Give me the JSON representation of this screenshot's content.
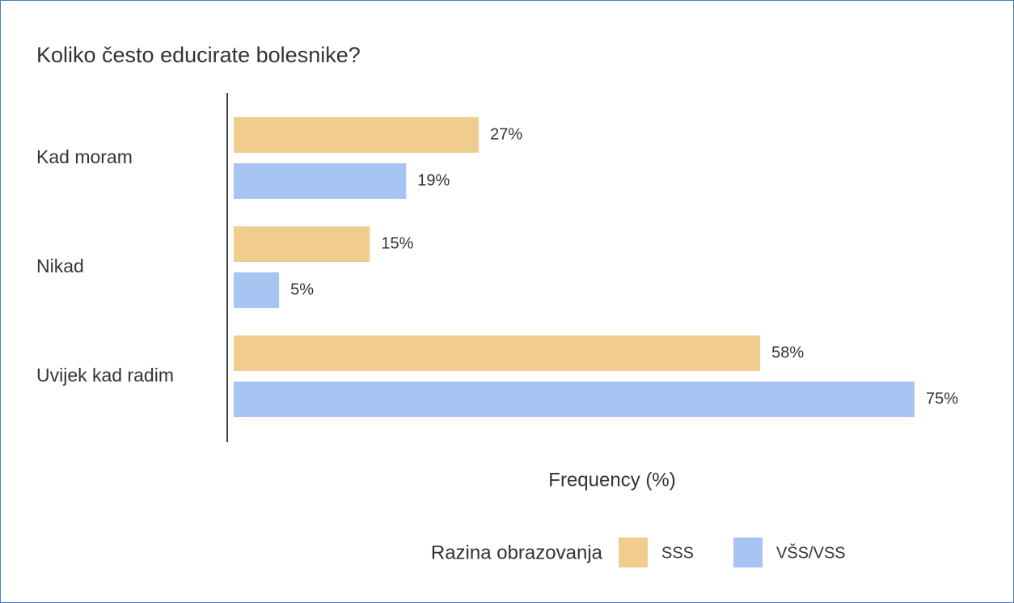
{
  "chart_data": {
    "type": "bar",
    "orientation": "horizontal",
    "title": "Koliko često educirate bolesnike?",
    "categories": [
      "Kad moram",
      "Nikad",
      "Uvijek kad radim"
    ],
    "series": [
      {
        "name": "SSS",
        "color": "#f0cd8f",
        "values": [
          27,
          15,
          58
        ],
        "value_labels": [
          "27%",
          "15%",
          "58%"
        ]
      },
      {
        "name": "VŠS/VSS",
        "color": "#a8c4f2",
        "values": [
          19,
          5,
          75
        ],
        "value_labels": [
          "19%",
          "5%",
          "75%"
        ]
      }
    ],
    "xlabel": "Frequency (%)",
    "xlim": [
      0,
      75
    ],
    "legend_title": "Razina obrazovanja",
    "legend": "bottom"
  }
}
